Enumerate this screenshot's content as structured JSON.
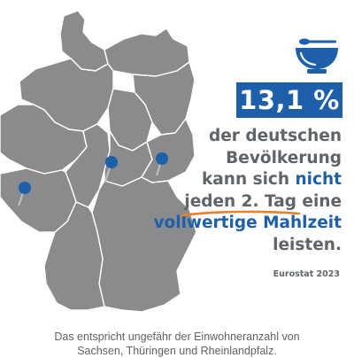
{
  "map": {
    "region": "Deutschland",
    "fill_color": "#8a8b8c",
    "border_color": "#ffffff",
    "highlighted_states": [
      "Sachsen",
      "Thüringen",
      "Rheinland-Pfalz"
    ],
    "pin_color": "#1d5fa8",
    "pins": [
      {
        "icon": "map-pin-icon",
        "state": "Sachsen"
      },
      {
        "icon": "map-pin-icon",
        "state": "Thüringen"
      },
      {
        "icon": "map-pin-icon",
        "state": "Rheinland-Pfalz"
      }
    ]
  },
  "icon": {
    "name": "bowl-with-spoon-icon",
    "color": "#1d5fa8"
  },
  "stat": {
    "value": "13,1 %",
    "bg_color": "#1d5fa8"
  },
  "headline": {
    "line1": "der deutschen",
    "line2": "Bevölkerung",
    "line3_a": "kann sich ",
    "line3_b": "nicht",
    "line4_a": "jeden 2. Tag",
    "line4_b": " eine",
    "line5": "vollwertige Mahlzeit",
    "line6": "leisten.",
    "accent_color": "#1d5fa8",
    "underline_color": "#e8812a"
  },
  "source": "Eurostat 2023",
  "footer": {
    "line1": "Das entspricht ungefähr der Einwohneranzahl von",
    "line2": "Sachsen, Thüringen und Rheinlandpfalz."
  }
}
